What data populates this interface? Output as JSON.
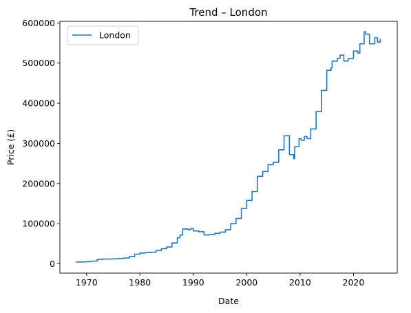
{
  "chart_data": {
    "type": "line",
    "title": "Trend – London",
    "xlabel": "Date",
    "ylabel": "Price (£)",
    "xlim": [
      1965.0,
      2028.2
    ],
    "ylim": [
      -23000,
      604000
    ],
    "xticks": [
      1970,
      1980,
      1990,
      2000,
      2010,
      2020
    ],
    "yticks": [
      0,
      100000,
      200000,
      300000,
      400000,
      500000,
      600000
    ],
    "grid": false,
    "legend_position": "top-left",
    "series": [
      {
        "name": "London",
        "color": "#1f77b4",
        "style": "steps-post",
        "points": [
          [
            1968.0,
            4500
          ],
          [
            1969.0,
            5000
          ],
          [
            1970.0,
            5500
          ],
          [
            1971.0,
            7000
          ],
          [
            1972.0,
            11000
          ],
          [
            1973.0,
            12000
          ],
          [
            1974.0,
            12000
          ],
          [
            1975.0,
            12500
          ],
          [
            1976.0,
            13500
          ],
          [
            1977.0,
            14500
          ],
          [
            1978.0,
            18000
          ],
          [
            1979.0,
            24000
          ],
          [
            1980.0,
            27000
          ],
          [
            1981.0,
            28000
          ],
          [
            1982.0,
            29000
          ],
          [
            1983.0,
            33000
          ],
          [
            1984.0,
            38000
          ],
          [
            1985.0,
            42000
          ],
          [
            1986.0,
            52000
          ],
          [
            1987.0,
            65000
          ],
          [
            1987.5,
            72000
          ],
          [
            1988.0,
            87000
          ],
          [
            1989.0,
            85000
          ],
          [
            1989.5,
            88000
          ],
          [
            1990.0,
            82000
          ],
          [
            1991.0,
            80000
          ],
          [
            1992.0,
            72000
          ],
          [
            1993.0,
            73000
          ],
          [
            1994.0,
            76000
          ],
          [
            1995.0,
            79000
          ],
          [
            1996.0,
            85000
          ],
          [
            1997.0,
            100000
          ],
          [
            1998.0,
            113000
          ],
          [
            1999.0,
            138000
          ],
          [
            2000.0,
            158000
          ],
          [
            2001.0,
            180000
          ],
          [
            2002.0,
            218000
          ],
          [
            2003.0,
            230000
          ],
          [
            2004.0,
            247000
          ],
          [
            2005.0,
            253000
          ],
          [
            2006.0,
            284000
          ],
          [
            2007.0,
            319000
          ],
          [
            2008.0,
            272000
          ],
          [
            2008.8,
            262000
          ],
          [
            2009.0,
            292000
          ],
          [
            2009.8,
            312000
          ],
          [
            2010.2,
            308000
          ],
          [
            2010.8,
            317000
          ],
          [
            2011.3,
            312000
          ],
          [
            2012.0,
            336000
          ],
          [
            2013.0,
            379000
          ],
          [
            2014.0,
            432000
          ],
          [
            2015.0,
            482000
          ],
          [
            2015.8,
            488000
          ],
          [
            2016.0,
            505000
          ],
          [
            2017.0,
            512000
          ],
          [
            2017.5,
            520000
          ],
          [
            2018.2,
            505000
          ],
          [
            2019.0,
            511000
          ],
          [
            2020.0,
            530000
          ],
          [
            2020.8,
            525000
          ],
          [
            2021.2,
            548000
          ],
          [
            2022.0,
            578000
          ],
          [
            2022.3,
            572000
          ],
          [
            2023.0,
            548000
          ],
          [
            2024.0,
            563000
          ],
          [
            2024.5,
            552000
          ],
          [
            2025.0,
            560000
          ]
        ]
      }
    ]
  }
}
